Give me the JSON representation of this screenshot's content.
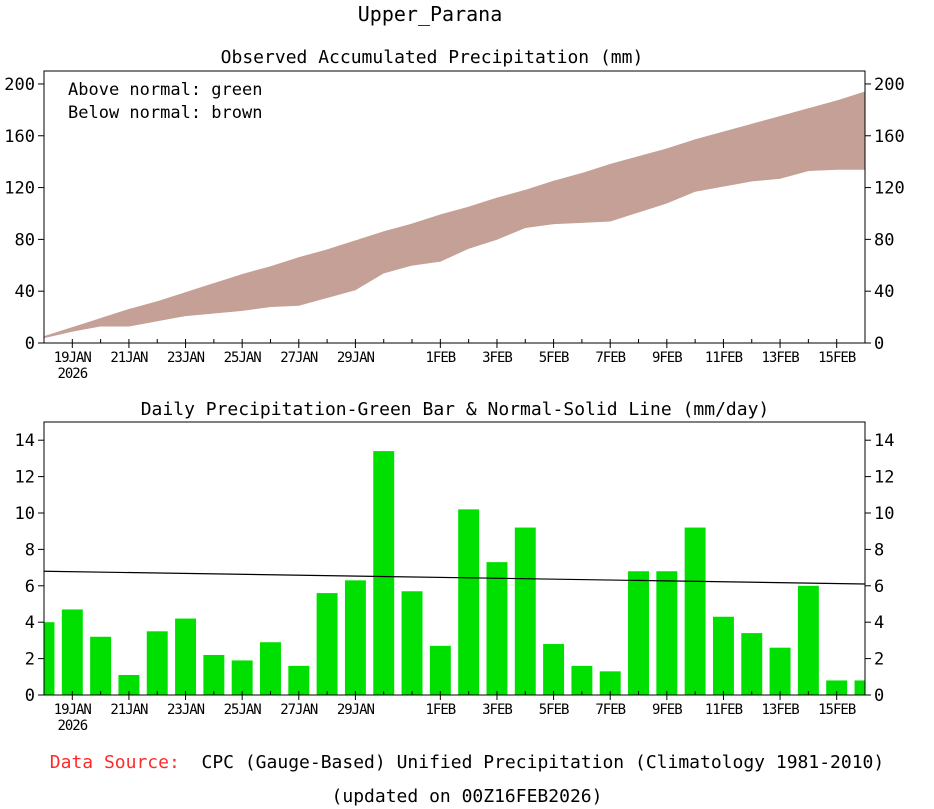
{
  "title": "Upper_Parana",
  "colors": {
    "above_normal": "#00dc00",
    "below_normal": "#c4a096",
    "bar": "#00e000",
    "normal_line": "#000000",
    "source_label": "#ff2a2a"
  },
  "chart_data": [
    {
      "type": "area",
      "title": "Observed Accumulated Precipitation (mm)",
      "legend": [
        "Above normal: green",
        "Below normal: brown"
      ],
      "legend_position": "top-left",
      "x_tick_labels": [
        "19JAN",
        "21JAN",
        "23JAN",
        "25JAN",
        "27JAN",
        "29JAN",
        "1FEB",
        "3FEB",
        "5FEB",
        "7FEB",
        "9FEB",
        "11FEB",
        "13FEB",
        "15FEB"
      ],
      "x_tick_days": [
        1,
        3,
        5,
        7,
        9,
        11,
        14,
        16,
        18,
        20,
        22,
        24,
        26,
        28
      ],
      "x_year_label": "2026",
      "x_range_days": [
        0,
        29
      ],
      "ylim": [
        0,
        210
      ],
      "yticks": [
        0,
        40,
        80,
        120,
        160,
        200
      ],
      "series": [
        {
          "name": "Observed accumulated",
          "x": [
            0,
            1,
            2,
            3,
            4,
            5,
            6,
            7,
            8,
            9,
            10,
            11,
            12,
            13,
            14,
            15,
            16,
            17,
            18,
            19,
            20,
            21,
            22,
            23,
            24,
            25,
            26,
            27,
            28,
            29
          ],
          "values": [
            4,
            9,
            13,
            13,
            17,
            21,
            23,
            25,
            28,
            29,
            35,
            41,
            54,
            60,
            63,
            73,
            80,
            89,
            92,
            93,
            94,
            101,
            108,
            117,
            121,
            125,
            127,
            133,
            134,
            134
          ]
        },
        {
          "name": "Normal accumulated",
          "x": [
            0,
            1,
            2,
            3,
            4,
            5,
            6,
            7,
            8,
            9,
            10,
            11,
            12,
            13,
            14,
            15,
            16,
            17,
            18,
            19,
            20,
            21,
            22,
            23,
            24,
            25,
            26,
            27,
            28,
            29
          ],
          "values": [
            5,
            12,
            19,
            26,
            32,
            39,
            46,
            53,
            59,
            66,
            72,
            79,
            86,
            92,
            99,
            105,
            112,
            118,
            125,
            131,
            138,
            144,
            150,
            157,
            163,
            169,
            175,
            181,
            187,
            194
          ]
        }
      ]
    },
    {
      "type": "bar",
      "title": "Daily Precipitation-Green Bar & Normal-Solid Line (mm/day)",
      "x_tick_labels": [
        "19JAN",
        "21JAN",
        "23JAN",
        "25JAN",
        "27JAN",
        "29JAN",
        "1FEB",
        "3FEB",
        "5FEB",
        "7FEB",
        "9FEB",
        "11FEB",
        "13FEB",
        "15FEB"
      ],
      "x_tick_days": [
        1,
        3,
        5,
        7,
        9,
        11,
        14,
        16,
        18,
        20,
        22,
        24,
        26,
        28
      ],
      "x_year_label": "2026",
      "x_range_days": [
        0,
        29
      ],
      "ylim": [
        0,
        15
      ],
      "yticks": [
        0,
        2,
        4,
        6,
        8,
        10,
        12,
        14
      ],
      "series": [
        {
          "name": "Daily precipitation",
          "x": [
            0,
            1,
            2,
            3,
            4,
            5,
            6,
            7,
            8,
            9,
            10,
            11,
            12,
            13,
            14,
            15,
            16,
            17,
            18,
            19,
            20,
            21,
            22,
            23,
            24,
            25,
            26,
            27,
            28,
            29
          ],
          "values": [
            4.0,
            4.7,
            3.2,
            1.1,
            3.5,
            4.2,
            2.2,
            1.9,
            2.9,
            1.6,
            5.6,
            6.3,
            13.4,
            5.7,
            2.7,
            10.2,
            7.3,
            9.2,
            2.8,
            1.6,
            1.3,
            6.8,
            6.8,
            9.2,
            4.3,
            3.4,
            2.6,
            6.0,
            0.8,
            0.8
          ]
        },
        {
          "name": "Normal",
          "x": [
            0,
            29
          ],
          "values": [
            6.8,
            6.1
          ]
        }
      ]
    }
  ],
  "footer": {
    "source_label": "Data Source:",
    "source_text": "CPC (Gauge-Based) Unified Precipitation (Climatology 1981-2010)",
    "updated": "(updated on 00Z16FEB2026)"
  }
}
